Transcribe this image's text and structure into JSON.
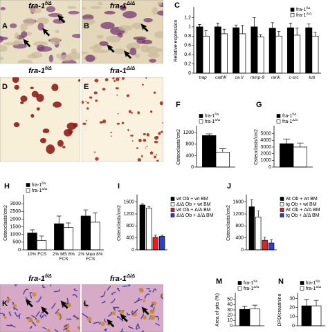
{
  "images": [
    {
      "label": "A",
      "title": "fra-1",
      "sup": "f/Δ"
    },
    {
      "label": "B",
      "title": "fra-1",
      "sup": "Δ/Δ"
    },
    {
      "label": "D",
      "title": "fra-1",
      "sup": "f/Δ"
    },
    {
      "label": "E",
      "title": "fra-1",
      "sup": "Δ/Δ"
    },
    {
      "label": "K",
      "title": "fra-1",
      "sup": "f/Δ"
    },
    {
      "label": "L",
      "title": "fra-1",
      "sup": "Δ/Δ"
    }
  ],
  "chart_data": [
    {
      "type": "bar",
      "label": "C",
      "ylabel": "Relative expression",
      "categories": [
        "trap",
        "cathK",
        "ca II",
        "mmp-9",
        "rank",
        "c-src",
        "tub"
      ],
      "series": [
        {
          "name": "fra-1",
          "name_sup": "f/Δ",
          "color": "#000000",
          "values": [
            1.0,
            1.0,
            0.98,
            1.0,
            0.97,
            0.98,
            0.98
          ],
          "errors": [
            0.05,
            0.08,
            0.06,
            0.2,
            0.12,
            0.1,
            0.08
          ]
        },
        {
          "name": "fra-1",
          "name_sup": "Δ/Δ",
          "color": "#ffffff",
          "values": [
            0.8,
            0.85,
            0.85,
            0.78,
            0.8,
            0.82,
            0.8
          ],
          "errors": [
            0.12,
            0.1,
            0.18,
            0.05,
            0.1,
            0.15,
            0.08
          ]
        }
      ],
      "ylim": [
        0,
        1.4
      ],
      "yticks": [
        0,
        0.2,
        0.4,
        0.6,
        0.8,
        1,
        1.2
      ],
      "legend": "upper right"
    },
    {
      "type": "bar",
      "label": "F",
      "ylabel": "Osteoclasts/cm2",
      "categories": [
        null
      ],
      "series": [
        {
          "name": "fra-1",
          "name_sup": "f/Δ",
          "color": "#000000",
          "values": [
            1100
          ],
          "errors": [
            60
          ]
        },
        {
          "name": "fra-1",
          "name_sup": "Δ/Δ",
          "color": "#ffffff",
          "values": [
            520
          ],
          "errors": [
            120
          ]
        }
      ],
      "ylim": [
        0,
        1400
      ],
      "yticks": [
        0,
        400,
        800,
        1200
      ],
      "legend": "upper left"
    },
    {
      "type": "bar",
      "label": "G",
      "ylabel": "Osteoclasts/cm2",
      "categories": [
        null
      ],
      "series": [
        {
          "name": "fra-1",
          "name_sup": "f/Δ",
          "color": "#000000",
          "values": [
            3500
          ],
          "errors": [
            700
          ]
        },
        {
          "name": "fra-1",
          "name_sup": "Δ/Δ",
          "color": "#ffffff",
          "values": [
            3000
          ],
          "errors": [
            600
          ]
        }
      ],
      "ylim": [
        0,
        6000
      ],
      "yticks": [
        0,
        1000,
        2000,
        3000,
        4000,
        5000
      ],
      "legend": "upper left"
    },
    {
      "type": "bar",
      "label": "H",
      "ylabel": "Osteoclasts/cm2",
      "categories": [
        "10% FCS",
        "2% MS 8% FCS",
        "2% Mφo 8% FCS"
      ],
      "series": [
        {
          "name": "fra-1",
          "name_sup": "f/Δ",
          "color": "#000000",
          "values": [
            1100,
            1700,
            2200
          ],
          "errors": [
            200,
            500,
            400
          ]
        },
        {
          "name": "fra-1",
          "name_sup": "Δ/Δ",
          "color": "#ffffff",
          "values": [
            600,
            1450,
            1800
          ],
          "errors": [
            300,
            300,
            600
          ]
        }
      ],
      "ylim": [
        0,
        3500
      ],
      "yticks": [
        0,
        500,
        1000,
        1500,
        2000,
        2500,
        3000
      ],
      "legend": "upper left"
    },
    {
      "type": "bar",
      "label": "I",
      "ylabel": "Osteoclasts/cm2",
      "categories": [
        null
      ],
      "series": [
        {
          "name": "wt Ob + wt BM",
          "color": "#000000",
          "values": [
            1500
          ],
          "errors": [
            40
          ]
        },
        {
          "name": "Δ/Δ Ob + wt BM",
          "color": "#ffffff",
          "values": [
            1400
          ],
          "errors": [
            50
          ]
        },
        {
          "name": "wt Ob + Δ/Δ BM",
          "color": "#ee1c1c",
          "values": [
            420
          ],
          "errors": [
            70
          ]
        },
        {
          "name": "Δ/Δ Ob + Δ/Δ BM",
          "color": "#2a3fd8",
          "values": [
            450
          ],
          "errors": [
            40
          ]
        }
      ],
      "ylim": [
        0,
        1800
      ],
      "yticks": [
        0,
        400,
        800,
        1200,
        1600
      ],
      "legend": "right"
    },
    {
      "type": "bar",
      "label": "J",
      "ylabel": "Osteoclasts/cm2",
      "categories": [
        null
      ],
      "series": [
        {
          "name": "wt Ob + wt BM",
          "color": "#000000",
          "values": [
            1440
          ],
          "errors": [
            240
          ]
        },
        {
          "name": "tg Ob + wt BM",
          "color": "#ffffff",
          "values": [
            1100
          ],
          "errors": [
            200
          ]
        },
        {
          "name": "wt Ob + Δ/Δ BM",
          "color": "#ee1c1c",
          "values": [
            320
          ],
          "errors": [
            100
          ]
        },
        {
          "name": "tg Ob + Δ/Δ BM",
          "color": "#2a3fd8",
          "values": [
            230
          ],
          "errors": [
            110
          ]
        }
      ],
      "ylim": [
        0,
        1800
      ],
      "yticks": [
        0,
        400,
        800,
        1200,
        1600
      ],
      "legend": "right"
    },
    {
      "type": "bar",
      "label": "M",
      "ylabel": "Area of pits (%)",
      "categories": [
        null
      ],
      "series": [
        {
          "name": "fra-1",
          "name_sup": "f/Δ",
          "color": "#000000",
          "values": [
            31
          ],
          "errors": [
            6
          ]
        },
        {
          "name": "fra-1",
          "name_sup": "Δ/Δ",
          "color": "#ffffff",
          "values": [
            32
          ],
          "errors": [
            7
          ]
        }
      ],
      "ylim": [
        0,
        60
      ],
      "yticks": [
        0,
        10,
        20,
        30,
        40,
        50
      ],
      "legend": "upper left"
    },
    {
      "type": "bar",
      "label": "N",
      "ylabel": "DPD/creatinine",
      "categories": [
        null
      ],
      "series": [
        {
          "name": "fra-1",
          "name_sup": "f/Δ",
          "color": "#000000",
          "values": [
            22
          ],
          "errors": [
            7
          ]
        },
        {
          "name": "fra-1",
          "name_sup": "Δ/Δ",
          "color": "#ffffff",
          "values": [
            22
          ],
          "errors": [
            6
          ]
        }
      ],
      "ylim": [
        0,
        35
      ],
      "yticks": [
        0,
        10,
        20,
        30
      ],
      "legend": "upper left"
    }
  ]
}
